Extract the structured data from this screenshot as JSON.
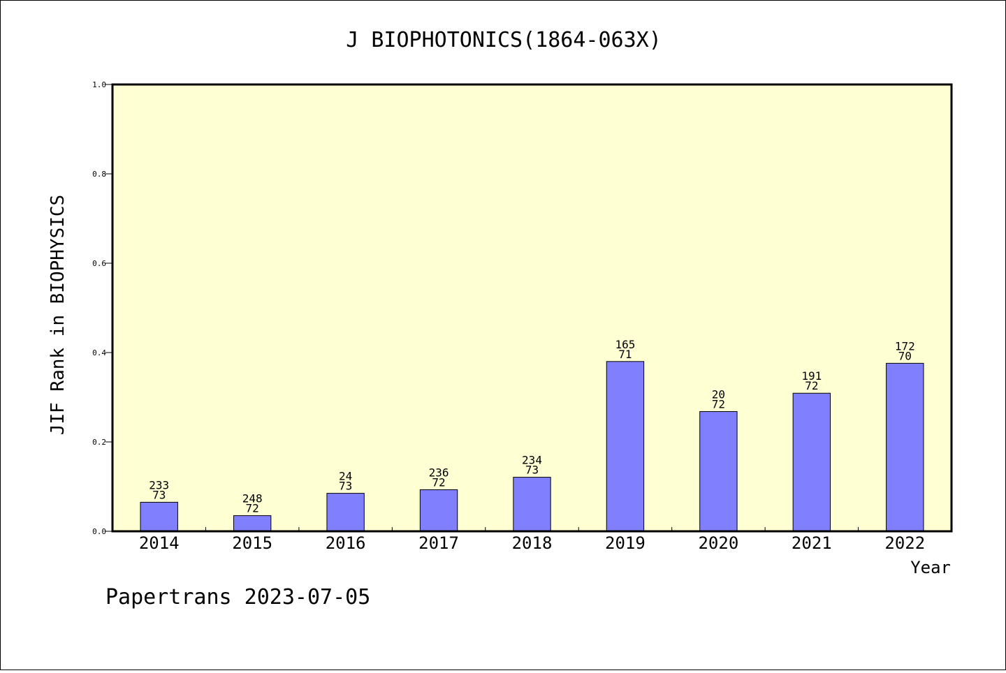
{
  "chart_data": {
    "type": "bar",
    "title": "J BIOPHOTONICS(1864-063X)",
    "xlabel": "Year",
    "ylabel": "JIF Rank in BIOPHYSICS",
    "footer": "Papertrans 2023-07-05",
    "ylim": [
      0,
      1.0
    ],
    "yticks": [
      "0.0",
      "0.2",
      "0.4",
      "0.6",
      "0.8",
      "1.0"
    ],
    "grid": false,
    "categories": [
      "2014",
      "2015",
      "2016",
      "2017",
      "2018",
      "2019",
      "2020",
      "2021",
      "2022"
    ],
    "values": [
      0.065,
      0.035,
      0.085,
      0.093,
      0.121,
      0.38,
      0.268,
      0.309,
      0.376
    ],
    "labels": [
      {
        "top": "233",
        "bottom": "73"
      },
      {
        "top": "248",
        "bottom": "72"
      },
      {
        "top": "24",
        "bottom": "73"
      },
      {
        "top": "236",
        "bottom": "72"
      },
      {
        "top": "234",
        "bottom": "73"
      },
      {
        "top": "165",
        "bottom": "71"
      },
      {
        "top": "20",
        "bottom": "72"
      },
      {
        "top": "191",
        "bottom": "72"
      },
      {
        "top": "172",
        "bottom": "70"
      }
    ],
    "colors": {
      "plot_background": "#ffffd4",
      "bar_fill": "#8080ff",
      "bar_stroke": "#000000",
      "axis": "#000000"
    }
  }
}
